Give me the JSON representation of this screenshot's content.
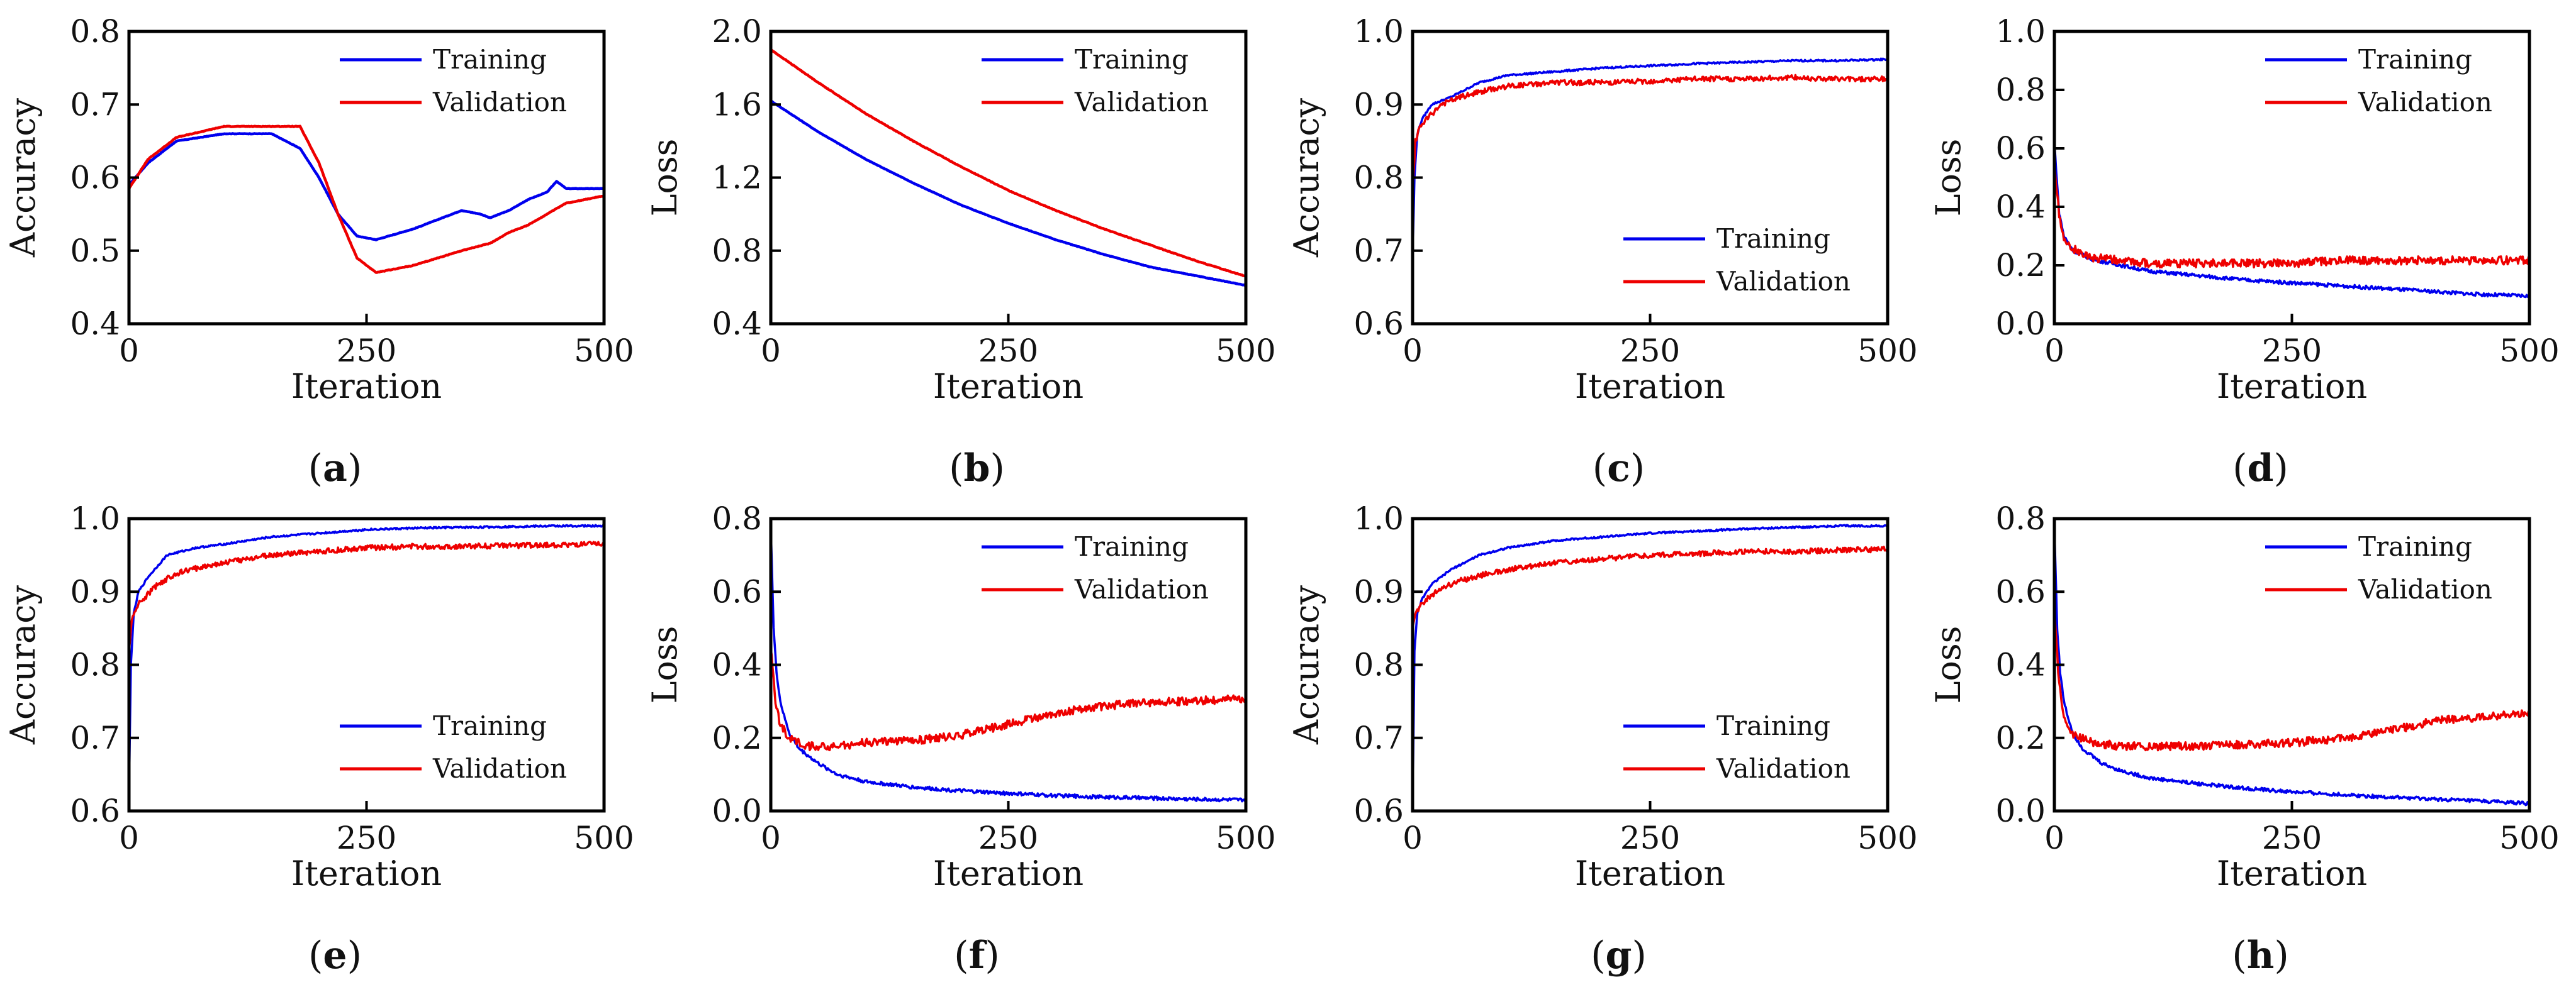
{
  "figure": {
    "colors": {
      "training": "#0000ee",
      "validation": "#ee0000",
      "axis": "#000000"
    }
  },
  "chart_data": [
    {
      "panel": "a",
      "type": "line",
      "xlabel": "Iteration",
      "ylabel": "Accuracy",
      "xlim": [
        0,
        500
      ],
      "ylim": [
        0.4,
        0.8
      ],
      "xticks": [
        0,
        250,
        500
      ],
      "xtick_labels": [
        "0",
        "250",
        "500"
      ],
      "yticks": [
        0.4,
        0.5,
        0.6,
        0.7,
        0.8
      ],
      "ytick_labels": [
        "0.4",
        "0.5",
        "0.6",
        "0.7",
        "0.8"
      ],
      "legend": "top-right",
      "series": [
        {
          "name": "Training",
          "x": [
            0,
            20,
            50,
            100,
            150,
            180,
            200,
            220,
            240,
            260,
            300,
            350,
            370,
            380,
            400,
            420,
            440,
            450,
            460,
            480,
            500
          ],
          "values": [
            0.59,
            0.62,
            0.65,
            0.66,
            0.66,
            0.64,
            0.6,
            0.55,
            0.52,
            0.515,
            0.53,
            0.555,
            0.55,
            0.545,
            0.555,
            0.57,
            0.58,
            0.595,
            0.585,
            0.585,
            0.585
          ]
        },
        {
          "name": "Validation",
          "x": [
            0,
            20,
            50,
            100,
            180,
            200,
            220,
            240,
            260,
            300,
            350,
            380,
            400,
            420,
            440,
            460,
            480,
            500
          ],
          "values": [
            0.585,
            0.625,
            0.655,
            0.67,
            0.67,
            0.62,
            0.55,
            0.49,
            0.47,
            0.48,
            0.5,
            0.51,
            0.525,
            0.535,
            0.55,
            0.565,
            0.57,
            0.575
          ]
        }
      ]
    },
    {
      "panel": "b",
      "type": "line",
      "xlabel": "Iteration",
      "ylabel": "Loss",
      "xlim": [
        0,
        500
      ],
      "ylim": [
        0.4,
        2.0
      ],
      "xticks": [
        0,
        250,
        500
      ],
      "xtick_labels": [
        "0",
        "250",
        "500"
      ],
      "yticks": [
        0.4,
        0.8,
        1.2,
        1.6,
        2.0
      ],
      "ytick_labels": [
        "0.4",
        "0.8",
        "1.2",
        "1.6",
        "2.0"
      ],
      "legend": "top-right",
      "series": [
        {
          "name": "Training",
          "x": [
            0,
            50,
            100,
            150,
            200,
            250,
            300,
            350,
            400,
            450,
            500
          ],
          "values": [
            1.62,
            1.45,
            1.3,
            1.17,
            1.05,
            0.95,
            0.86,
            0.78,
            0.71,
            0.66,
            0.61
          ]
        },
        {
          "name": "Validation",
          "x": [
            0,
            50,
            100,
            150,
            200,
            250,
            300,
            350,
            400,
            450,
            500
          ],
          "values": [
            1.9,
            1.72,
            1.55,
            1.4,
            1.26,
            1.13,
            1.02,
            0.92,
            0.83,
            0.74,
            0.66
          ]
        }
      ]
    },
    {
      "panel": "c",
      "type": "line",
      "xlabel": "Iteration",
      "ylabel": "Accuracy",
      "xlim": [
        0,
        500
      ],
      "ylim": [
        0.6,
        1.0
      ],
      "xticks": [
        0,
        250,
        500
      ],
      "xtick_labels": [
        "0",
        "250",
        "500"
      ],
      "yticks": [
        0.6,
        0.7,
        0.8,
        0.9,
        1.0
      ],
      "ytick_labels": [
        "0.6",
        "0.7",
        "0.8",
        "0.9",
        "1.0"
      ],
      "legend": "bottom-right",
      "series": [
        {
          "name": "Training",
          "x": [
            0,
            2,
            5,
            10,
            20,
            40,
            70,
            100,
            150,
            200,
            250,
            300,
            350,
            400,
            450,
            500
          ],
          "values": [
            0.69,
            0.8,
            0.86,
            0.88,
            0.9,
            0.91,
            0.93,
            0.94,
            0.945,
            0.95,
            0.953,
            0.956,
            0.958,
            0.96,
            0.96,
            0.962
          ]
        },
        {
          "name": "Validation",
          "x": [
            0,
            3,
            8,
            15,
            30,
            50,
            80,
            100,
            150,
            200,
            250,
            300,
            350,
            400,
            450,
            500
          ],
          "values": [
            0.78,
            0.85,
            0.87,
            0.88,
            0.9,
            0.91,
            0.92,
            0.925,
            0.93,
            0.93,
            0.932,
            0.935,
            0.935,
            0.937,
            0.935,
            0.935
          ]
        }
      ]
    },
    {
      "panel": "d",
      "type": "line",
      "xlabel": "Iteration",
      "ylabel": "Loss",
      "xlim": [
        0,
        500
      ],
      "ylim": [
        0.0,
        1.0
      ],
      "xticks": [
        0,
        250,
        500
      ],
      "xtick_labels": [
        "0",
        "250",
        "500"
      ],
      "yticks": [
        0.0,
        0.2,
        0.4,
        0.6,
        0.8,
        1.0
      ],
      "ytick_labels": [
        "0.0",
        "0.2",
        "0.4",
        "0.6",
        "0.8",
        "1.0"
      ],
      "legend": "top-right",
      "series": [
        {
          "name": "Training",
          "x": [
            0,
            5,
            10,
            20,
            40,
            70,
            100,
            150,
            200,
            250,
            300,
            350,
            400,
            450,
            500
          ],
          "values": [
            0.62,
            0.38,
            0.3,
            0.25,
            0.22,
            0.2,
            0.18,
            0.165,
            0.15,
            0.14,
            0.13,
            0.12,
            0.11,
            0.1,
            0.095
          ]
        },
        {
          "name": "Validation",
          "x": [
            0,
            5,
            10,
            20,
            40,
            70,
            100,
            150,
            200,
            250,
            300,
            350,
            400,
            450,
            500
          ],
          "values": [
            0.55,
            0.38,
            0.3,
            0.26,
            0.23,
            0.22,
            0.21,
            0.21,
            0.21,
            0.21,
            0.22,
            0.22,
            0.22,
            0.22,
            0.22
          ]
        }
      ]
    },
    {
      "panel": "e",
      "type": "line",
      "xlabel": "Iteration",
      "ylabel": "Accuracy",
      "xlim": [
        0,
        500
      ],
      "ylim": [
        0.6,
        1.0
      ],
      "xticks": [
        0,
        250,
        500
      ],
      "xtick_labels": [
        "0",
        "250",
        "500"
      ],
      "yticks": [
        0.6,
        0.7,
        0.8,
        0.9,
        1.0
      ],
      "ytick_labels": [
        "0.6",
        "0.7",
        "0.8",
        "0.9",
        "1.0"
      ],
      "legend": "bottom-right",
      "series": [
        {
          "name": "Training",
          "x": [
            0,
            2,
            5,
            10,
            20,
            40,
            70,
            100,
            150,
            200,
            250,
            300,
            350,
            400,
            450,
            500
          ],
          "values": [
            0.62,
            0.8,
            0.87,
            0.9,
            0.92,
            0.95,
            0.96,
            0.965,
            0.975,
            0.98,
            0.985,
            0.987,
            0.988,
            0.989,
            0.99,
            0.99
          ]
        },
        {
          "name": "Validation",
          "x": [
            0,
            3,
            8,
            15,
            30,
            50,
            80,
            100,
            150,
            200,
            250,
            300,
            350,
            400,
            450,
            500
          ],
          "values": [
            0.82,
            0.86,
            0.88,
            0.89,
            0.91,
            0.925,
            0.935,
            0.94,
            0.95,
            0.955,
            0.96,
            0.962,
            0.962,
            0.963,
            0.964,
            0.965
          ]
        }
      ]
    },
    {
      "panel": "f",
      "type": "line",
      "xlabel": "Iteration",
      "ylabel": "Loss",
      "xlim": [
        0,
        500
      ],
      "ylim": [
        0.0,
        0.8
      ],
      "xticks": [
        0,
        250,
        500
      ],
      "xtick_labels": [
        "0",
        "250",
        "500"
      ],
      "yticks": [
        0.0,
        0.2,
        0.4,
        0.6,
        0.8
      ],
      "ytick_labels": [
        "0.0",
        "0.2",
        "0.4",
        "0.6",
        "0.8"
      ],
      "legend": "top-right",
      "series": [
        {
          "name": "Training",
          "x": [
            0,
            3,
            6,
            10,
            15,
            20,
            30,
            50,
            70,
            100,
            150,
            200,
            250,
            300,
            350,
            400,
            450,
            500
          ],
          "values": [
            0.78,
            0.5,
            0.38,
            0.3,
            0.25,
            0.21,
            0.17,
            0.13,
            0.1,
            0.08,
            0.065,
            0.055,
            0.048,
            0.042,
            0.038,
            0.035,
            0.032,
            0.03
          ]
        },
        {
          "name": "Validation",
          "x": [
            0,
            5,
            10,
            20,
            40,
            70,
            100,
            150,
            200,
            250,
            300,
            350,
            400,
            450,
            500
          ],
          "values": [
            0.45,
            0.3,
            0.24,
            0.2,
            0.18,
            0.18,
            0.19,
            0.195,
            0.21,
            0.24,
            0.27,
            0.29,
            0.3,
            0.305,
            0.31
          ]
        }
      ]
    },
    {
      "panel": "g",
      "type": "line",
      "xlabel": "Iteration",
      "ylabel": "Accuracy",
      "xlim": [
        0,
        500
      ],
      "ylim": [
        0.6,
        1.0
      ],
      "xticks": [
        0,
        250,
        500
      ],
      "xtick_labels": [
        "0",
        "250",
        "500"
      ],
      "yticks": [
        0.6,
        0.7,
        0.8,
        0.9,
        1.0
      ],
      "ytick_labels": [
        "0.6",
        "0.7",
        "0.8",
        "0.9",
        "1.0"
      ],
      "legend": "bottom-right",
      "series": [
        {
          "name": "Training",
          "x": [
            0,
            2,
            5,
            10,
            20,
            40,
            70,
            100,
            150,
            200,
            250,
            300,
            350,
            400,
            450,
            500
          ],
          "values": [
            0.6,
            0.82,
            0.87,
            0.89,
            0.91,
            0.93,
            0.95,
            0.96,
            0.97,
            0.975,
            0.98,
            0.983,
            0.986,
            0.988,
            0.99,
            0.99
          ]
        },
        {
          "name": "Validation",
          "x": [
            0,
            3,
            8,
            15,
            30,
            50,
            80,
            100,
            150,
            200,
            250,
            300,
            350,
            400,
            450,
            500
          ],
          "values": [
            0.85,
            0.87,
            0.88,
            0.89,
            0.905,
            0.915,
            0.925,
            0.93,
            0.94,
            0.945,
            0.95,
            0.952,
            0.955,
            0.955,
            0.957,
            0.958
          ]
        }
      ]
    },
    {
      "panel": "h",
      "type": "line",
      "xlabel": "Iteration",
      "ylabel": "Loss",
      "xlim": [
        0,
        500
      ],
      "ylim": [
        0.0,
        0.8
      ],
      "xticks": [
        0,
        250,
        500
      ],
      "xtick_labels": [
        "0",
        "250",
        "500"
      ],
      "yticks": [
        0.0,
        0.2,
        0.4,
        0.6,
        0.8
      ],
      "ytick_labels": [
        "0.0",
        "0.2",
        "0.4",
        "0.6",
        "0.8"
      ],
      "legend": "top-right",
      "series": [
        {
          "name": "Training",
          "x": [
            0,
            3,
            6,
            10,
            15,
            20,
            30,
            50,
            70,
            100,
            150,
            200,
            250,
            300,
            350,
            400,
            450,
            500
          ],
          "values": [
            0.78,
            0.5,
            0.38,
            0.3,
            0.25,
            0.21,
            0.17,
            0.13,
            0.11,
            0.09,
            0.075,
            0.062,
            0.052,
            0.045,
            0.038,
            0.032,
            0.027,
            0.02
          ]
        },
        {
          "name": "Validation",
          "x": [
            0,
            5,
            10,
            20,
            40,
            70,
            100,
            150,
            200,
            250,
            300,
            350,
            400,
            450,
            500
          ],
          "values": [
            0.55,
            0.35,
            0.26,
            0.21,
            0.19,
            0.18,
            0.18,
            0.18,
            0.185,
            0.19,
            0.2,
            0.22,
            0.25,
            0.26,
            0.27
          ]
        }
      ]
    }
  ]
}
